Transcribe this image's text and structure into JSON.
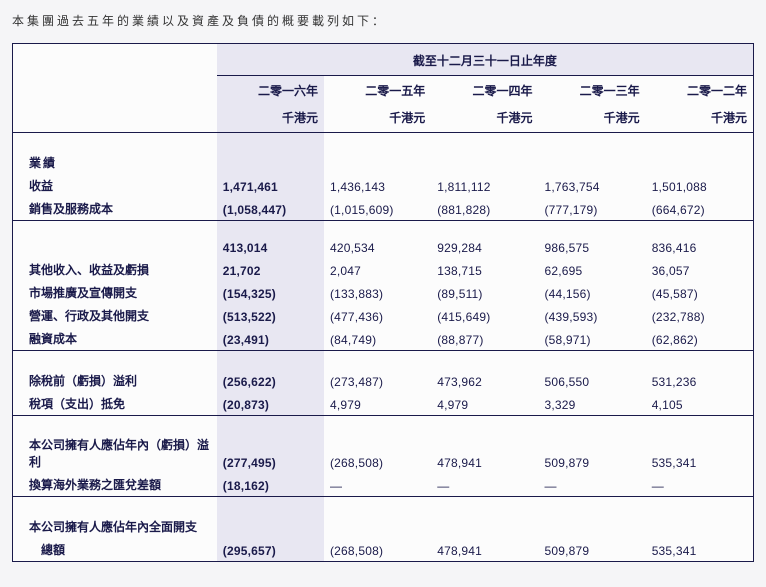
{
  "intro": "本集團過去五年的業績以及資產及負債的概要載列如下：",
  "headerGroup": "截至十二月三十一日止年度",
  "years": {
    "y2016": "二零一六年",
    "y2015": "二零一五年",
    "y2014": "二零一四年",
    "y2013": "二零一三年",
    "y2012": "二零一二年"
  },
  "unit": "千港元",
  "sections": {
    "perfTitle": "業績",
    "rows": {
      "revenue": {
        "label": "收益",
        "v": [
          "1,471,461",
          "1,436,143",
          "1,811,112",
          "1,763,754",
          "1,501,088"
        ]
      },
      "cos": {
        "label": "銷售及服務成本",
        "v": [
          "(1,058,447)",
          "(1,015,609)",
          "(881,828)",
          "(777,179)",
          "(664,672)"
        ]
      },
      "gross": {
        "label": "",
        "v": [
          "413,014",
          "420,534",
          "929,284",
          "986,575",
          "836,416"
        ]
      },
      "other": {
        "label": "其他收入、收益及虧損",
        "v": [
          "21,702",
          "2,047",
          "138,715",
          "62,695",
          "36,057"
        ]
      },
      "marketing": {
        "label": "市場推廣及宣傳開支",
        "v": [
          "(154,325)",
          "(133,883)",
          "(89,511)",
          "(44,156)",
          "(45,587)"
        ]
      },
      "admin": {
        "label": "營運、行政及其他開支",
        "v": [
          "(513,522)",
          "(477,436)",
          "(415,649)",
          "(439,593)",
          "(232,788)"
        ]
      },
      "finance": {
        "label": "融資成本",
        "v": [
          "(23,491)",
          "(84,749)",
          "(88,877)",
          "(58,971)",
          "(62,862)"
        ]
      },
      "pbt": {
        "label": "除稅前（虧損）溢利",
        "v": [
          "(256,622)",
          "(273,487)",
          "473,962",
          "506,550",
          "531,236"
        ]
      },
      "tax": {
        "label": "稅項（支出）抵免",
        "v": [
          "(20,873)",
          "4,979",
          "4,979",
          "3,329",
          "4,105"
        ]
      },
      "attrib": {
        "label": "本公司擁有人應佔年內（虧損）溢利",
        "v": [
          "(277,495)",
          "(268,508)",
          "478,941",
          "509,879",
          "535,341"
        ]
      },
      "fx": {
        "label": "換算海外業務之匯兌差額",
        "v": [
          "(18,162)",
          "—",
          "—",
          "—",
          "—"
        ]
      },
      "compL1": {
        "label": "本公司擁有人應佔年內全面開支"
      },
      "compL2": {
        "label": "　總額",
        "v": [
          "(295,657)",
          "(268,508)",
          "478,941",
          "509,879",
          "535,341"
        ]
      }
    }
  },
  "colors": {
    "text": "#1a1a4a",
    "highlightBg": "#e8e7f2",
    "border": "#1a1a4a",
    "pageBg": "#f5f5f7"
  }
}
